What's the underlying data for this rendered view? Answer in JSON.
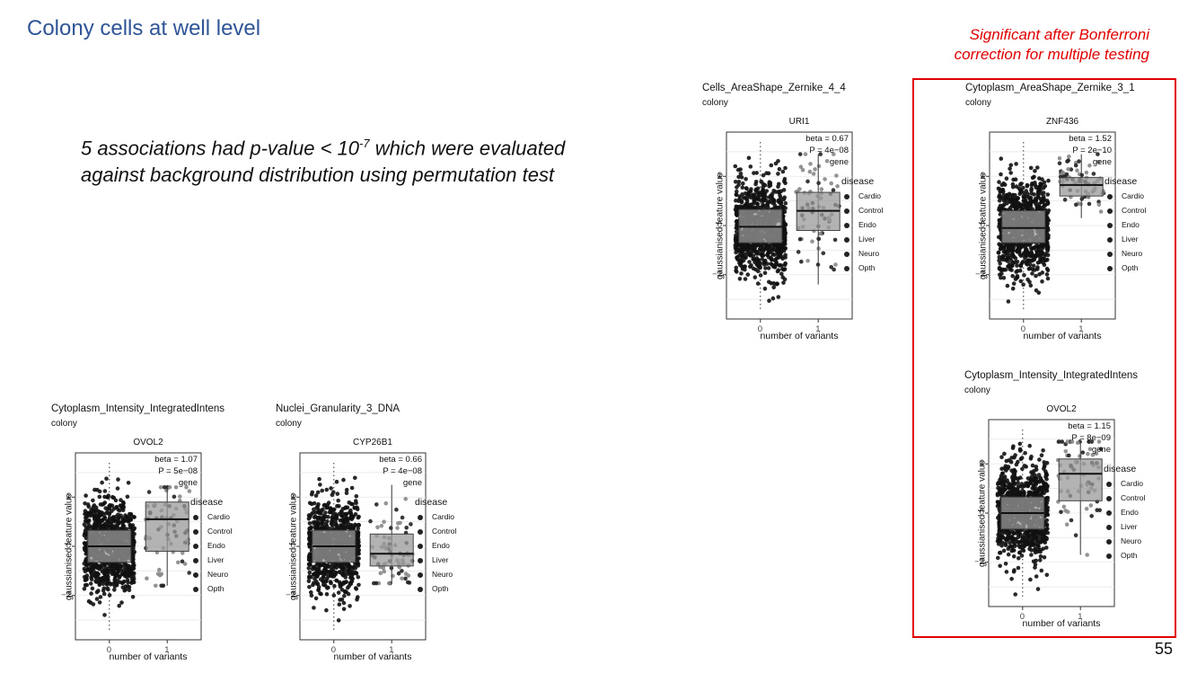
{
  "slide": {
    "title": "Colony cells at well level",
    "note_line1": "Significant after Bonferroni",
    "note_line2": "correction for multiple testing",
    "body_pre": "5 associations had p-value < 10",
    "body_exp": "-7",
    "body_post": " which were evaluated against background distribution using permutation test",
    "page_number": "55"
  },
  "chart_data": [
    {
      "type": "boxplot",
      "title": "Cells_AreaShape_Zernike_4_4",
      "subtitle": "colony",
      "facet": "URI1",
      "xlabel": "number of variants",
      "ylabel": "gaussianised feature value",
      "categories": [
        "0",
        "1"
      ],
      "yticks": [
        "-2",
        "0",
        "2"
      ],
      "ylim": [
        -3.8,
        3.8
      ],
      "annot_beta": "beta = 0.67",
      "annot_p": "P = 4e−08",
      "annot_gene": "gene",
      "legend_title": "disease",
      "legend": [
        "Cardio",
        "Control",
        "Endo",
        "Liver",
        "Neuro",
        "Opth"
      ],
      "boxes": [
        {
          "q1": -0.7,
          "median": -0.05,
          "q3": 0.65,
          "whisker_low": -3.4,
          "whisker_high": 3.4
        },
        {
          "q1": -0.2,
          "median": 0.6,
          "q3": 1.35,
          "whisker_low": -2.4,
          "whisker_high": 2.9
        }
      ]
    },
    {
      "type": "boxplot",
      "title": "Cytoplasm_AreaShape_Zernike_3_1",
      "subtitle": "colony",
      "facet": "ZNF436",
      "xlabel": "number of variants",
      "ylabel": "gaussianised feature value",
      "categories": [
        "0",
        "1"
      ],
      "yticks": [
        "-2",
        "0",
        "2"
      ],
      "ylim": [
        -3.8,
        3.8
      ],
      "annot_beta": "beta = 1.52",
      "annot_p": "P = 2e−10",
      "annot_gene": "gene",
      "legend_title": "disease",
      "legend": [
        "Cardio",
        "Control",
        "Endo",
        "Liver",
        "Neuro",
        "Opth"
      ],
      "boxes": [
        {
          "q1": -0.7,
          "median": -0.1,
          "q3": 0.6,
          "whisker_low": -3.4,
          "whisker_high": 3.4
        },
        {
          "q1": 1.2,
          "median": 1.65,
          "q3": 1.95,
          "whisker_low": 0.3,
          "whisker_high": 2.9
        }
      ]
    },
    {
      "type": "boxplot",
      "title": "Cytoplasm_Intensity_IntegratedIntens",
      "subtitle": "colony",
      "facet": "OVOL2",
      "xlabel": "number of variants",
      "ylabel": "gaussianised feature value",
      "categories": [
        "0",
        "1"
      ],
      "yticks": [
        "-2",
        "0",
        "2"
      ],
      "ylim": [
        -3.8,
        3.8
      ],
      "annot_beta": "beta = 1.15",
      "annot_p": "P = 8e−09",
      "annot_gene": "gene",
      "legend_title": "disease",
      "legend": [
        "Cardio",
        "Control",
        "Endo",
        "Liver",
        "Neuro",
        "Opth"
      ],
      "boxes": [
        {
          "q1": -0.65,
          "median": 0.0,
          "q3": 0.65,
          "whisker_low": -3.4,
          "whisker_high": 3.4
        },
        {
          "q1": 0.5,
          "median": 1.6,
          "q3": 2.2,
          "whisker_low": -1.7,
          "whisker_high": 2.9
        }
      ]
    },
    {
      "type": "boxplot",
      "title": "Cytoplasm_Intensity_IntegratedIntens",
      "subtitle": "colony",
      "facet": "OVOL2",
      "xlabel": "number of variants",
      "ylabel": "gaussianised feature value",
      "categories": [
        "0",
        "1"
      ],
      "yticks": [
        "-2",
        "0",
        "2"
      ],
      "ylim": [
        -3.8,
        3.8
      ],
      "annot_beta": "beta = 1.07",
      "annot_p": "P = 5e−08",
      "annot_gene": "gene",
      "legend_title": "disease",
      "legend": [
        "Cardio",
        "Control",
        "Endo",
        "Liver",
        "Neuro",
        "Opth"
      ],
      "boxes": [
        {
          "q1": -0.65,
          "median": 0.0,
          "q3": 0.65,
          "whisker_low": -3.4,
          "whisker_high": 3.4
        },
        {
          "q1": -0.2,
          "median": 1.1,
          "q3": 1.8,
          "whisker_low": -1.6,
          "whisker_high": 2.4
        }
      ]
    },
    {
      "type": "boxplot",
      "title": "Nuclei_Granularity_3_DNA",
      "subtitle": "colony",
      "facet": "CYP26B1",
      "xlabel": "number of variants",
      "ylabel": "gaussianised feature value",
      "categories": [
        "0",
        "1"
      ],
      "yticks": [
        "-2",
        "0",
        "2"
      ],
      "ylim": [
        -3.8,
        3.8
      ],
      "annot_beta": "beta = 0.66",
      "annot_p": "P = 4e−08",
      "annot_gene": "gene",
      "legend_title": "disease",
      "legend": [
        "Cardio",
        "Control",
        "Endo",
        "Liver",
        "Neuro",
        "Opth"
      ],
      "boxes": [
        {
          "q1": -0.65,
          "median": 0.0,
          "q3": 0.65,
          "whisker_low": -3.4,
          "whisker_high": 3.4
        },
        {
          "q1": -0.8,
          "median": -0.3,
          "q3": 0.5,
          "whisker_low": -1.5,
          "whisker_high": 2.5
        }
      ]
    }
  ]
}
